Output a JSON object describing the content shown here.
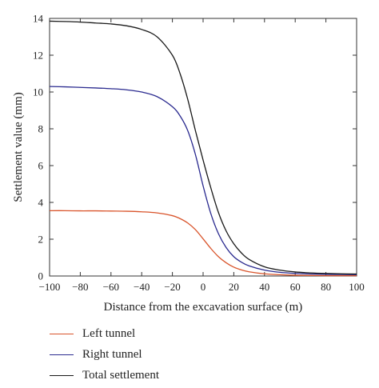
{
  "chart_data": {
    "type": "line",
    "xlabel": "Distance from the excavation surface (m)",
    "ylabel": "Settlement value (mm)",
    "xlim": [
      -100,
      100
    ],
    "ylim": [
      0,
      14
    ],
    "xticks": [
      -100,
      -80,
      -60,
      -40,
      -20,
      0,
      20,
      40,
      60,
      80,
      100
    ],
    "yticks": [
      0,
      2,
      4,
      6,
      8,
      10,
      12,
      14
    ],
    "grid": false,
    "legend_position": "bottom-left",
    "x": [
      -100,
      -90,
      -80,
      -70,
      -60,
      -50,
      -40,
      -30,
      -20,
      -15,
      -10,
      -5,
      0,
      5,
      10,
      15,
      20,
      25,
      30,
      40,
      50,
      60,
      70,
      80,
      90,
      100
    ],
    "series": [
      {
        "name": "Left tunnel",
        "color": "#d9542b",
        "values": [
          3.55,
          3.55,
          3.54,
          3.54,
          3.53,
          3.52,
          3.49,
          3.43,
          3.28,
          3.12,
          2.88,
          2.52,
          2.02,
          1.5,
          1.05,
          0.72,
          0.48,
          0.33,
          0.23,
          0.12,
          0.07,
          0.04,
          0.03,
          0.02,
          0.02,
          0.02
        ]
      },
      {
        "name": "Right tunnel",
        "color": "#2a2a8f",
        "values": [
          10.3,
          10.28,
          10.25,
          10.22,
          10.18,
          10.12,
          10.0,
          9.75,
          9.2,
          8.7,
          7.9,
          6.6,
          4.9,
          3.4,
          2.3,
          1.55,
          1.05,
          0.75,
          0.55,
          0.32,
          0.2,
          0.14,
          0.11,
          0.09,
          0.08,
          0.07
        ]
      },
      {
        "name": "Total settlement",
        "color": "#1a1a1a",
        "values": [
          13.85,
          13.83,
          13.8,
          13.75,
          13.7,
          13.6,
          13.4,
          13.0,
          12.0,
          11.0,
          9.6,
          7.9,
          6.3,
          4.8,
          3.45,
          2.45,
          1.75,
          1.25,
          0.9,
          0.5,
          0.32,
          0.22,
          0.17,
          0.14,
          0.12,
          0.11
        ]
      }
    ]
  }
}
